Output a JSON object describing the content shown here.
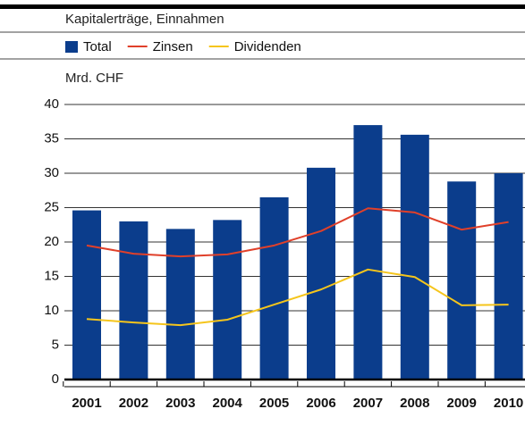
{
  "chart_data": {
    "type": "bar",
    "title": "Kapitalerträge, Einnahmen",
    "y_label": "Mrd. CHF",
    "categories": [
      "2001",
      "2002",
      "2003",
      "2004",
      "2005",
      "2006",
      "2007",
      "2008",
      "2009",
      "2010"
    ],
    "series": [
      {
        "name": "Total",
        "type": "bar",
        "color": "#0b3d8c",
        "values": [
          24.6,
          23.0,
          21.9,
          23.2,
          26.5,
          30.8,
          37.0,
          35.6,
          28.8,
          30.0
        ]
      },
      {
        "name": "Zinsen",
        "type": "line",
        "color": "#e0402a",
        "values": [
          19.5,
          18.3,
          17.9,
          18.2,
          19.5,
          21.6,
          24.9,
          24.3,
          21.8,
          22.9
        ]
      },
      {
        "name": "Dividenden",
        "type": "line",
        "color": "#f5c51c",
        "values": [
          8.8,
          8.3,
          7.9,
          8.7,
          10.9,
          13.1,
          16.0,
          14.9,
          10.8,
          10.9
        ]
      }
    ],
    "ylim": [
      0,
      40
    ],
    "yticks": [
      0,
      5,
      10,
      15,
      20,
      25,
      30,
      35,
      40
    ],
    "grid": true
  }
}
